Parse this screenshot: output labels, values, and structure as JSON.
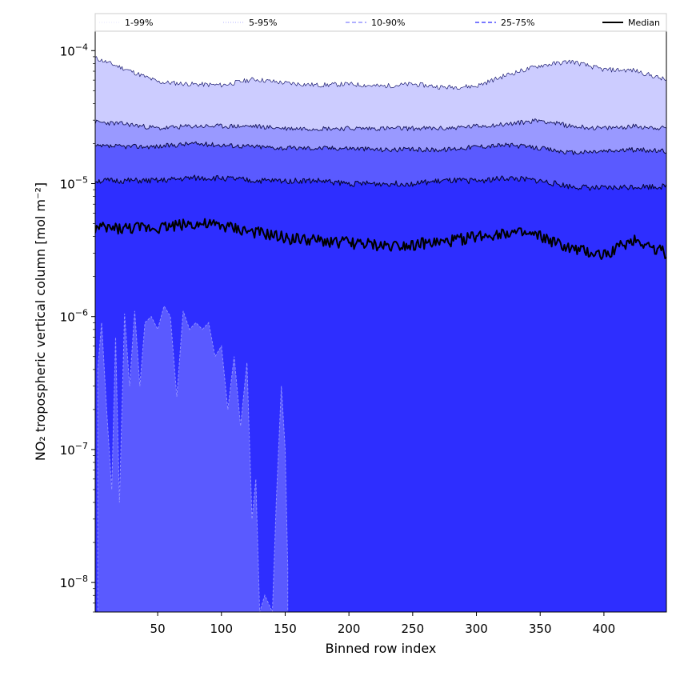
{
  "chart_data": {
    "type": "area",
    "xlabel": "Binned row index",
    "ylabel": "NO₂ tropospheric vertical column [mol m⁻²]",
    "xscale": "linear",
    "yscale": "log",
    "xlim": [
      1,
      449
    ],
    "ylim": [
      6e-09,
      0.00014
    ],
    "x_ticks": [
      50,
      100,
      150,
      200,
      250,
      300,
      350,
      400
    ],
    "x_tick_labels": [
      "50",
      "100",
      "150",
      "200",
      "250",
      "300",
      "350",
      "400"
    ],
    "y_ticks": [
      1e-08,
      1e-07,
      1e-06,
      1e-05,
      0.0001
    ],
    "y_tick_labels": [
      {
        "base": "10",
        "exp": "−8"
      },
      {
        "base": "10",
        "exp": "−7"
      },
      {
        "base": "10",
        "exp": "−6"
      },
      {
        "base": "10",
        "exp": "−5"
      },
      {
        "base": "10",
        "exp": "−4"
      }
    ],
    "grid": false,
    "legend_position": "top (above plot, single row)",
    "legend": [
      {
        "label": "1-99%",
        "color": "#e6e6ff",
        "style": "dotted",
        "width": 1
      },
      {
        "label": "5-95%",
        "color": "#b3b3ff",
        "style": "dotted",
        "width": 1
      },
      {
        "label": "10-90%",
        "color": "#8080ff",
        "style": "dashed",
        "width": 1.2
      },
      {
        "label": "25-75%",
        "color": "#4d4dff",
        "style": "dashed",
        "width": 1.5
      },
      {
        "label": "Median",
        "color": "#000000",
        "style": "solid",
        "width": 2
      }
    ],
    "x": [
      1,
      25,
      50,
      75,
      100,
      125,
      150,
      175,
      200,
      225,
      250,
      275,
      300,
      325,
      350,
      375,
      400,
      425,
      449
    ],
    "series": [
      {
        "name": "99%",
        "values": [
          8.8e-05,
          7.2e-05,
          5.8e-05,
          5.6e-05,
          5.5e-05,
          6.1e-05,
          5.7e-05,
          5.5e-05,
          5.6e-05,
          5.4e-05,
          5.6e-05,
          5.3e-05,
          5.4e-05,
          6.6e-05,
          7.7e-05,
          8.3e-05,
          7.2e-05,
          7.1e-05,
          6e-05
        ]
      },
      {
        "name": "95%",
        "values": [
          2.9e-05,
          2.8e-05,
          2.6e-05,
          2.7e-05,
          2.7e-05,
          2.7e-05,
          2.6e-05,
          2.6e-05,
          2.6e-05,
          2.6e-05,
          2.6e-05,
          2.6e-05,
          2.7e-05,
          2.8e-05,
          3e-05,
          2.7e-05,
          2.6e-05,
          2.7e-05,
          2.6e-05
        ]
      },
      {
        "name": "90%",
        "values": [
          1.9e-05,
          1.9e-05,
          1.9e-05,
          2e-05,
          1.95e-05,
          1.9e-05,
          1.85e-05,
          1.85e-05,
          1.85e-05,
          1.8e-05,
          1.8e-05,
          1.8e-05,
          1.9e-05,
          1.95e-05,
          1.85e-05,
          1.7e-05,
          1.75e-05,
          1.8e-05,
          1.75e-05
        ]
      },
      {
        "name": "75%",
        "values": [
          1.05e-05,
          1.05e-05,
          1.05e-05,
          1.1e-05,
          1.1e-05,
          1.05e-05,
          1.05e-05,
          1.05e-05,
          1e-05,
          1e-05,
          1e-05,
          1.05e-05,
          1.05e-05,
          1.1e-05,
          1.05e-05,
          9.5e-06,
          9.2e-06,
          9.5e-06,
          9.5e-06
        ]
      },
      {
        "name": "Median",
        "values": [
          4.6e-06,
          4.6e-06,
          4.7e-06,
          5e-06,
          4.8e-06,
          4.3e-06,
          3.9e-06,
          3.7e-06,
          3.6e-06,
          3.4e-06,
          3.5e-06,
          3.6e-06,
          4e-06,
          4.3e-06,
          4e-06,
          3.2e-06,
          2.9e-06,
          3.8e-06,
          3e-06
        ]
      },
      {
        "name": "1%",
        "points": [
          [
            3,
            4e-07
          ],
          [
            6,
            9e-07
          ],
          [
            10,
            2e-07
          ],
          [
            14,
            5e-08
          ],
          [
            17,
            7e-07
          ],
          [
            20,
            4e-08
          ],
          [
            24,
            1.05e-06
          ],
          [
            28,
            3e-07
          ],
          [
            32,
            1.1e-06
          ],
          [
            36,
            3e-07
          ],
          [
            40,
            9e-07
          ],
          [
            45,
            1e-06
          ],
          [
            50,
            8e-07
          ],
          [
            55,
            1.2e-06
          ],
          [
            60,
            1e-06
          ],
          [
            65,
            2.5e-07
          ],
          [
            70,
            1.1e-06
          ],
          [
            75,
            8e-07
          ],
          [
            80,
            9e-07
          ],
          [
            85,
            8e-07
          ],
          [
            90,
            9e-07
          ],
          [
            95,
            5e-07
          ],
          [
            100,
            6e-07
          ],
          [
            105,
            2e-07
          ],
          [
            110,
            5e-07
          ],
          [
            115,
            1.5e-07
          ],
          [
            120,
            4.5e-07
          ],
          [
            124,
            3e-08
          ],
          [
            127,
            6e-08
          ],
          [
            130,
            6e-09
          ],
          [
            134,
            8e-09
          ],
          [
            140,
            6e-09
          ],
          [
            143,
            4e-08
          ],
          [
            147,
            3e-07
          ],
          [
            150,
            1e-07
          ],
          [
            152,
            1.3e-08
          ]
        ]
      }
    ]
  }
}
